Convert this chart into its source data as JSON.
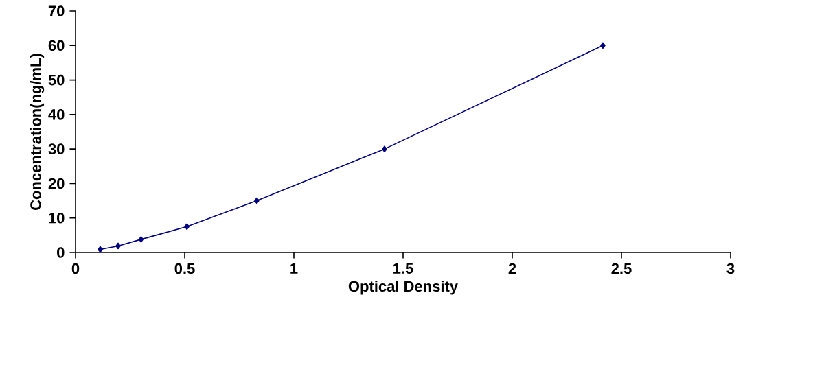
{
  "chart_data": {
    "type": "line",
    "xlabel": "Optical Density",
    "ylabel": "Concentration(ng/mL)",
    "x": [
      0.113,
      0.195,
      0.3,
      0.51,
      0.83,
      1.415,
      2.415
    ],
    "series": [
      {
        "color": "#000080",
        "values": [
          0.9,
          1.9,
          3.8,
          7.5,
          15,
          30,
          60
        ]
      }
    ],
    "xlim": [
      0,
      3
    ],
    "ylim": [
      0,
      70
    ],
    "xticks": [
      0,
      0.5,
      1,
      1.5,
      2,
      2.5,
      3
    ],
    "yticks": [
      0,
      10,
      20,
      30,
      40,
      50,
      60,
      70
    ],
    "marker": "diamond",
    "line_style": "solid",
    "grid": false
  }
}
